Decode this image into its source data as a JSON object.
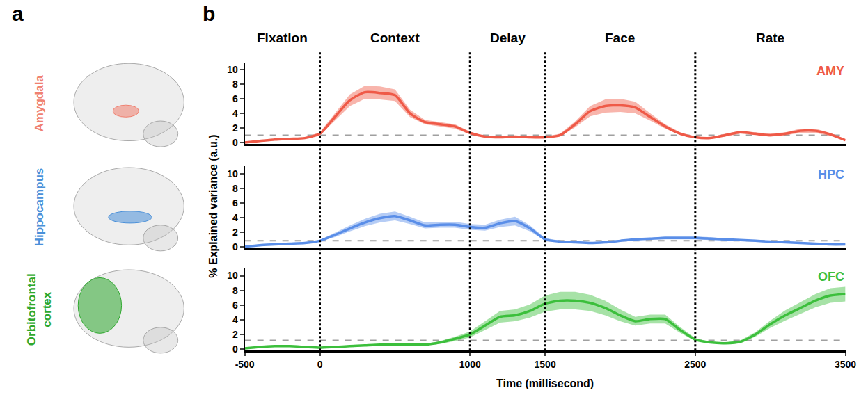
{
  "panel_labels": [
    "a",
    "b"
  ],
  "brain_regions": [
    {
      "label": "Amygdala",
      "color": "#f08070"
    },
    {
      "label": "Hippocampus",
      "color": "#4a90d9"
    },
    {
      "label": "Orbitofrontal cortex",
      "color": "#2ea82e"
    }
  ],
  "epochs": [
    {
      "label": "Fixation",
      "start": -500,
      "end": 0
    },
    {
      "label": "Context",
      "start": 0,
      "end": 1000
    },
    {
      "label": "Delay",
      "start": 1000,
      "end": 1500
    },
    {
      "label": "Face",
      "start": 1500,
      "end": 2500
    },
    {
      "label": "Rate",
      "start": 2500,
      "end": 3500
    }
  ],
  "xlabel": "Time (millisecond)",
  "ylabel": "% Explained variance (a.u.)",
  "chart_data": [
    {
      "type": "line",
      "title": "AMY",
      "color": "#ef5a48",
      "tick_labels": "y",
      "xlim": [
        -500,
        3500
      ],
      "ylim": [
        -0.2,
        11
      ],
      "yticks": [
        0,
        2,
        4,
        6,
        8,
        10
      ],
      "threshold": 1.0,
      "x": [
        -500,
        -400,
        -300,
        -200,
        -100,
        0,
        100,
        200,
        300,
        400,
        500,
        600,
        700,
        800,
        900,
        1000,
        1100,
        1200,
        1300,
        1400,
        1500,
        1600,
        1700,
        1800,
        1900,
        2000,
        2100,
        2200,
        2300,
        2400,
        2500,
        2600,
        2700,
        2800,
        2900,
        3000,
        3100,
        3200,
        3300,
        3400,
        3500
      ],
      "values": [
        0.0,
        0.2,
        0.4,
        0.5,
        0.6,
        1.2,
        3.5,
        5.8,
        6.9,
        6.8,
        6.5,
        4.0,
        2.8,
        2.5,
        2.2,
        1.3,
        0.8,
        0.7,
        0.8,
        0.7,
        0.7,
        1.0,
        2.5,
        4.3,
        5.0,
        5.1,
        4.8,
        3.5,
        2.2,
        1.2,
        0.7,
        0.6,
        1.0,
        1.4,
        1.2,
        1.0,
        1.2,
        1.6,
        1.6,
        1.1,
        0.3
      ],
      "error": [
        0.1,
        0.1,
        0.1,
        0.1,
        0.1,
        0.2,
        0.5,
        0.8,
        0.9,
        0.9,
        0.8,
        0.5,
        0.3,
        0.3,
        0.3,
        0.2,
        0.1,
        0.1,
        0.1,
        0.1,
        0.1,
        0.2,
        0.4,
        0.7,
        0.9,
        0.9,
        0.8,
        0.5,
        0.3,
        0.2,
        0.1,
        0.1,
        0.2,
        0.2,
        0.2,
        0.2,
        0.2,
        0.3,
        0.3,
        0.2,
        0.1
      ]
    },
    {
      "type": "line",
      "title": "HPC",
      "color": "#5a8ee8",
      "tick_labels": "y",
      "xlim": [
        -500,
        3500
      ],
      "ylim": [
        -0.2,
        11
      ],
      "yticks": [
        0,
        2,
        4,
        6,
        8,
        10
      ],
      "threshold": 0.8,
      "x": [
        -500,
        -400,
        -300,
        -200,
        -100,
        0,
        100,
        200,
        300,
        400,
        500,
        600,
        700,
        800,
        900,
        1000,
        1100,
        1200,
        1300,
        1400,
        1500,
        1600,
        1700,
        1800,
        1900,
        2000,
        2100,
        2200,
        2300,
        2400,
        2500,
        2600,
        2700,
        2800,
        2900,
        3000,
        3100,
        3200,
        3300,
        3400,
        3500
      ],
      "values": [
        0.0,
        0.2,
        0.3,
        0.4,
        0.5,
        0.8,
        1.6,
        2.5,
        3.3,
        3.9,
        4.2,
        3.6,
        2.9,
        3.0,
        3.0,
        2.7,
        2.6,
        3.2,
        3.5,
        2.5,
        1.0,
        0.7,
        0.6,
        0.5,
        0.6,
        0.8,
        1.0,
        1.1,
        1.2,
        1.2,
        1.2,
        1.1,
        1.0,
        0.9,
        0.8,
        0.7,
        0.6,
        0.5,
        0.4,
        0.3,
        0.3
      ],
      "error": [
        0.1,
        0.1,
        0.1,
        0.1,
        0.1,
        0.1,
        0.3,
        0.4,
        0.5,
        0.6,
        0.6,
        0.5,
        0.4,
        0.4,
        0.4,
        0.4,
        0.4,
        0.5,
        0.6,
        0.4,
        0.2,
        0.1,
        0.1,
        0.1,
        0.1,
        0.1,
        0.1,
        0.1,
        0.2,
        0.2,
        0.2,
        0.2,
        0.1,
        0.1,
        0.1,
        0.1,
        0.1,
        0.1,
        0.1,
        0.1,
        0.1
      ]
    },
    {
      "type": "line",
      "title": "OFC",
      "color": "#3cbf3c",
      "xlim": [
        -500,
        3500
      ],
      "ylim": [
        -0.2,
        11
      ],
      "xticks": [
        -500,
        0,
        1000,
        1500,
        2500,
        3500
      ],
      "yticks": [
        0,
        2,
        4,
        6,
        8,
        10
      ],
      "threshold": 1.2,
      "x": [
        -500,
        -400,
        -300,
        -200,
        -100,
        0,
        100,
        200,
        300,
        400,
        500,
        600,
        700,
        800,
        900,
        1000,
        1100,
        1200,
        1300,
        1400,
        1500,
        1600,
        1700,
        1800,
        1900,
        2000,
        2100,
        2200,
        2300,
        2400,
        2500,
        2600,
        2700,
        2800,
        2900,
        3000,
        3100,
        3200,
        3300,
        3400,
        3500
      ],
      "values": [
        0.1,
        0.3,
        0.4,
        0.4,
        0.3,
        0.2,
        0.3,
        0.4,
        0.5,
        0.6,
        0.6,
        0.6,
        0.6,
        0.9,
        1.4,
        2.0,
        3.2,
        4.4,
        4.6,
        5.2,
        6.2,
        6.6,
        6.6,
        6.3,
        5.6,
        4.6,
        3.8,
        4.1,
        4.1,
        2.6,
        1.3,
        0.9,
        0.8,
        1.0,
        2.0,
        3.4,
        4.6,
        5.6,
        6.6,
        7.3,
        7.5
      ],
      "error": [
        0.1,
        0.1,
        0.1,
        0.1,
        0.1,
        0.1,
        0.1,
        0.1,
        0.1,
        0.1,
        0.1,
        0.1,
        0.1,
        0.2,
        0.3,
        0.4,
        0.6,
        0.8,
        0.8,
        0.9,
        1.1,
        1.2,
        1.2,
        1.1,
        1.0,
        0.8,
        0.6,
        0.6,
        0.6,
        0.4,
        0.2,
        0.1,
        0.1,
        0.2,
        0.3,
        0.5,
        0.7,
        0.8,
        0.9,
        1.0,
        1.0
      ]
    }
  ]
}
